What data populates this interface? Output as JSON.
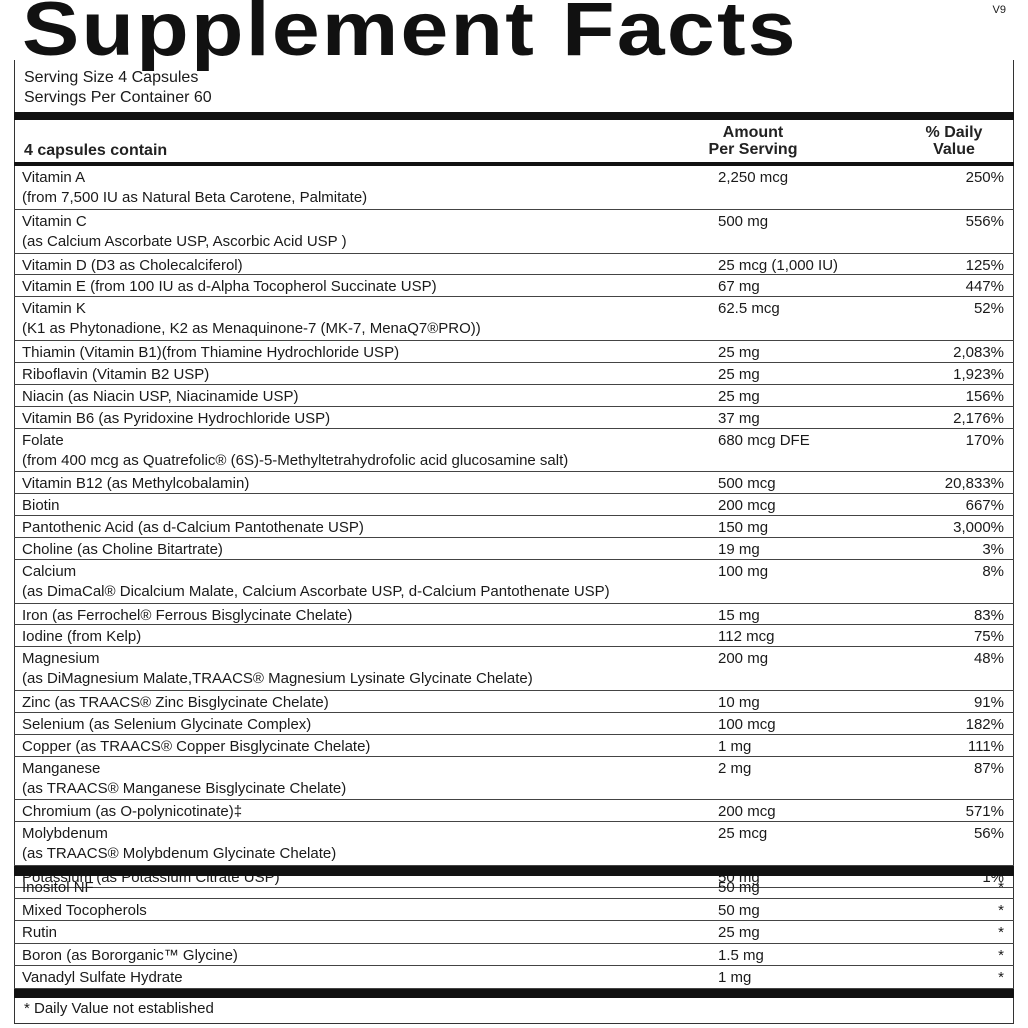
{
  "title": "Supplement Facts",
  "version": "V9",
  "serving_size": "Serving Size 4 Capsules",
  "servings_per_container": "Servings Per Container 60",
  "header": {
    "col1": "4 capsules contain",
    "col2_line1": "Amount",
    "col2_line2": "Per Serving",
    "col3_line1": "% Daily",
    "col3_line2": "Value"
  },
  "nutrients": [
    {
      "name": "Vitamin A",
      "sub": "(from 7,500 IU as Natural Beta Carotene, Palmitate)",
      "amount": "2,250 mcg",
      "dv": "250%"
    },
    {
      "name": "Vitamin C",
      "sub": "(as Calcium Ascorbate USP, Ascorbic Acid USP )",
      "amount": "500 mg",
      "dv": "556%"
    },
    {
      "name": "Vitamin D (D3 as Cholecalciferol)",
      "amount": "25 mcg (1,000 IU)",
      "dv": "125%"
    },
    {
      "name": "Vitamin E (from 100 IU as d-Alpha Tocopherol Succinate USP)",
      "amount": "67 mg",
      "dv": "447%"
    },
    {
      "name": "Vitamin K",
      "sub": "(K1 as Phytonadione, K2 as Menaquinone-7 (MK-7, MenaQ7®PRO))",
      "amount": "62.5 mcg",
      "dv": "52%"
    },
    {
      "name": "Thiamin (Vitamin B1)(from Thiamine Hydrochloride USP)",
      "amount": "25 mg",
      "dv": "2,083%"
    },
    {
      "name": "Riboflavin (Vitamin B2 USP)",
      "amount": "25 mg",
      "dv": "1,923%"
    },
    {
      "name": "Niacin (as Niacin USP, Niacinamide USP)",
      "amount": "25 mg",
      "dv": "156%"
    },
    {
      "name": "Vitamin B6 (as Pyridoxine Hydrochloride USP)",
      "amount": "37 mg",
      "dv": "2,176%"
    },
    {
      "name": "Folate",
      "sub": "(from 400 mcg as Quatrefolic® (6S)-5-Methyltetrahydrofolic acid glucosamine salt)",
      "amount": "680 mcg DFE",
      "dv": "170%"
    },
    {
      "name": "Vitamin B12 (as Methylcobalamin)",
      "amount": "500 mcg",
      "dv": "20,833%"
    },
    {
      "name": "Biotin",
      "amount": "200 mcg",
      "dv": "667%"
    },
    {
      "name": "Pantothenic Acid (as d-Calcium Pantothenate USP)",
      "amount": "150 mg",
      "dv": "3,000%"
    },
    {
      "name": "Choline (as Choline Bitartrate)",
      "amount": "19 mg",
      "dv": "3%"
    },
    {
      "name": "Calcium",
      "sub": "(as DimaCal® Dicalcium Malate, Calcium Ascorbate USP, d-Calcium Pantothenate USP)",
      "amount": "100 mg",
      "dv": "8%"
    },
    {
      "name": "Iron (as Ferrochel® Ferrous Bisglycinate Chelate)",
      "amount": "15 mg",
      "dv": "83%"
    },
    {
      "name": "Iodine (from Kelp)",
      "amount": "112 mcg",
      "dv": "75%"
    },
    {
      "name": "Magnesium",
      "sub": "(as DiMagnesium Malate,TRAACS® Magnesium Lysinate Glycinate Chelate)",
      "amount": "200 mg",
      "dv": "48%"
    },
    {
      "name": "Zinc (as TRAACS® Zinc Bisglycinate Chelate)",
      "amount": "10 mg",
      "dv": "91%"
    },
    {
      "name": "Selenium (as Selenium Glycinate Complex)",
      "amount": "100 mcg",
      "dv": "182%"
    },
    {
      "name": "Copper (as TRAACS® Copper Bisglycinate Chelate)",
      "amount": "1 mg",
      "dv": "111%"
    },
    {
      "name": "Manganese",
      "sub": "(as TRAACS® Manganese Bisglycinate Chelate)",
      "amount": "2 mg",
      "dv": "87%"
    },
    {
      "name": "Chromium (as O-polynicotinate)‡",
      "amount": "200 mcg",
      "dv": "571%"
    },
    {
      "name": "Molybdenum",
      "sub": "(as TRAACS® Molybdenum Glycinate Chelate)",
      "amount": "25 mcg",
      "dv": "56%"
    },
    {
      "name": "Potassium (as Potassium Citrate USP)",
      "amount": "50 mg",
      "dv": "1%"
    }
  ],
  "other": [
    {
      "name": "Inositol NF",
      "amount": "50 mg",
      "dv": "*"
    },
    {
      "name": "Mixed Tocopherols",
      "amount": "50 mg",
      "dv": "*"
    },
    {
      "name": "Rutin",
      "amount": "25 mg",
      "dv": "*"
    },
    {
      "name": "Boron (as Bororganic™ Glycine)",
      "amount": "1.5 mg",
      "dv": "*"
    },
    {
      "name": "Vanadyl Sulfate Hydrate",
      "amount": "1 mg",
      "dv": "*"
    }
  ],
  "footnote": "* Daily Value not established"
}
